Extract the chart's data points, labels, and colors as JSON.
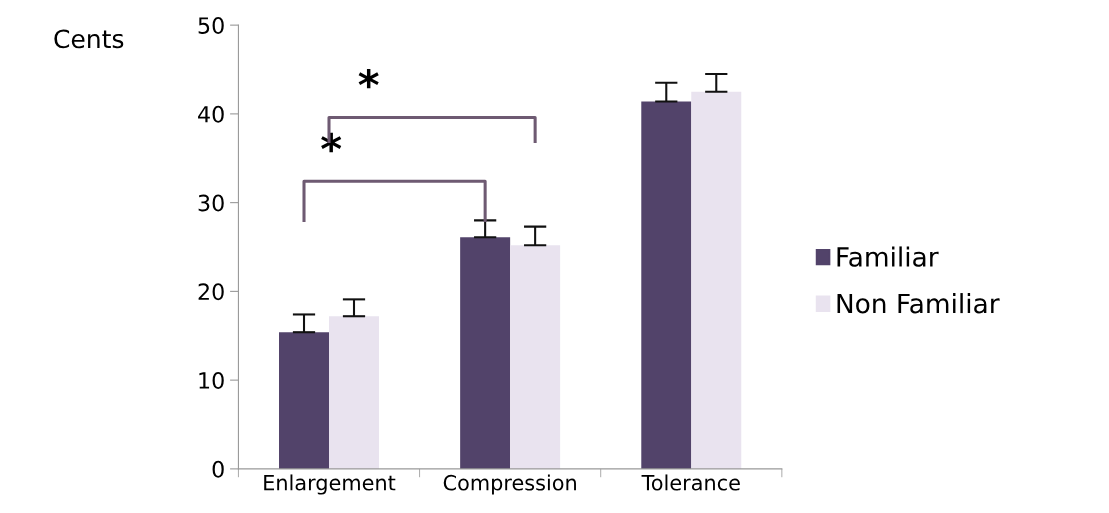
{
  "chart_data": {
    "type": "bar",
    "ylabel": "Cents",
    "categories": [
      "Enlargement",
      "Compression",
      "Tolerance"
    ],
    "series": [
      {
        "name": "Familiar",
        "color": "#52436a",
        "values": [
          15.4,
          26.1,
          41.4
        ],
        "errors": [
          [
            15.4,
            17.4
          ],
          [
            26.1,
            28.0
          ],
          [
            41.4,
            43.5
          ]
        ]
      },
      {
        "name": "Non Familiar",
        "color": "#e9e3ef",
        "values": [
          17.2,
          25.2,
          42.5
        ],
        "errors": [
          [
            17.2,
            19.1
          ],
          [
            25.2,
            27.3
          ],
          [
            42.5,
            44.5
          ]
        ]
      }
    ],
    "ylim": [
      0,
      50
    ],
    "yticks": [
      0,
      10,
      20,
      30,
      40,
      50
    ],
    "grid": false,
    "legend": "right",
    "annotations": [
      "*",
      "*"
    ]
  }
}
